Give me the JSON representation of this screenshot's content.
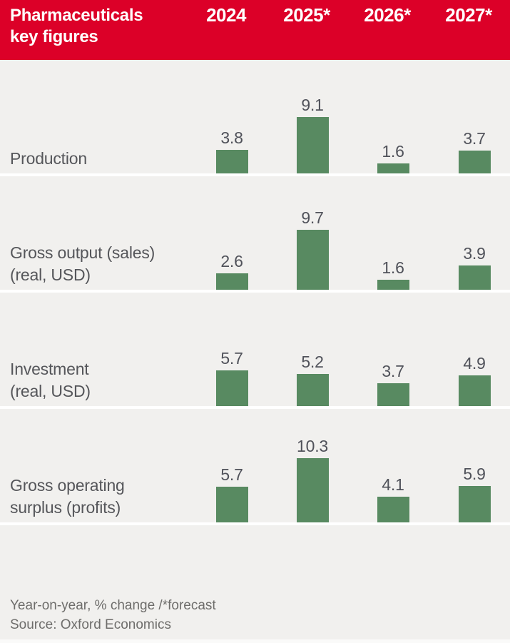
{
  "header": {
    "title_line1": "Pharmaceuticals",
    "title_line2": "key figures",
    "columns": [
      "2024",
      "2025*",
      "2026*",
      "2027*"
    ]
  },
  "chart_data": {
    "type": "bar",
    "title": "Pharmaceuticals key figures",
    "categories": [
      "2024",
      "2025*",
      "2026*",
      "2027*"
    ],
    "series": [
      {
        "name": "Production",
        "values": [
          3.8,
          9.1,
          1.6,
          3.7
        ]
      },
      {
        "name": "Gross output (sales) (real, USD)",
        "values": [
          2.6,
          9.7,
          1.6,
          3.9
        ]
      },
      {
        "name": "Investment (real, USD)",
        "values": [
          5.7,
          5.2,
          3.7,
          4.9
        ]
      },
      {
        "name": "Gross operating surplus (profits)",
        "values": [
          5.7,
          10.3,
          4.1,
          5.9
        ]
      }
    ],
    "value_labels": [
      [
        "3.8",
        "9.1",
        "1.6",
        "3.7"
      ],
      [
        "2.6",
        "9.7",
        "1.6",
        "3.9"
      ],
      [
        "5.7",
        "5.2",
        "3.7",
        "4.9"
      ],
      [
        "5.7",
        "10.3",
        "4.1",
        "5.9"
      ]
    ],
    "unit": "Year-on-year, % change",
    "ylim": [
      0,
      11
    ],
    "grid": false,
    "legend": "none",
    "source": "Oxford Economics"
  },
  "rows": [
    {
      "label_lines": [
        "Production"
      ]
    },
    {
      "label_lines": [
        "Gross output (sales)",
        "(real, USD)"
      ]
    },
    {
      "label_lines": [
        "Investment",
        "(real, USD)"
      ]
    },
    {
      "label_lines": [
        "Gross operating",
        "surplus (profits)"
      ]
    }
  ],
  "footer": {
    "note": "Year-on-year, % change /*forecast",
    "source": "Source: Oxford Economics"
  },
  "colors": {
    "header_red": "#dc0028",
    "header_text": "#ffffff",
    "bar_green": "#588a61",
    "row_bg": "#f1f0ee",
    "separator": "#ffffff",
    "label_text": "#55565a",
    "value_text": "#50525a",
    "footer_text": "#6e6d6b"
  }
}
